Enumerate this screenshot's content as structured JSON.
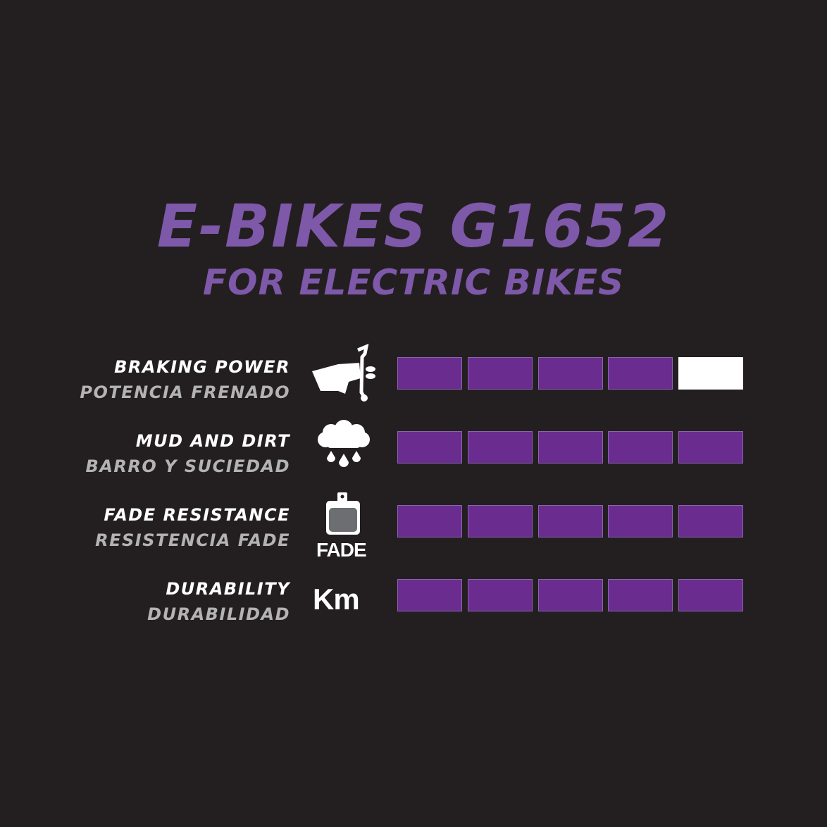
{
  "header": {
    "title": "E-BIKES G1652",
    "subtitle": "FOR ELECTRIC BIKES"
  },
  "colors": {
    "background": "#231f20",
    "accent": "#7e58a9",
    "bar_filled": "#6a2d8f",
    "bar_empty": "#ffffff"
  },
  "rating_scale_max": 5,
  "ratings": [
    {
      "label_en": "BRAKING POWER",
      "label_es": "POTENCIA FRENADO",
      "icon": "hand-brake-lever-icon",
      "value": 4
    },
    {
      "label_en": "MUD AND DIRT",
      "label_es": "BARRO Y SUCIEDAD",
      "icon": "rain-cloud-icon",
      "value": 5
    },
    {
      "label_en": "FADE RESISTANCE",
      "label_es": "RESISTENCIA FADE",
      "icon": "brake-pad-icon",
      "icon_text": "FADE",
      "value": 5
    },
    {
      "label_en": "DURABILITY",
      "label_es": "DURABILIDAD",
      "icon": "km-icon",
      "icon_text": "Km",
      "value": 5
    }
  ]
}
